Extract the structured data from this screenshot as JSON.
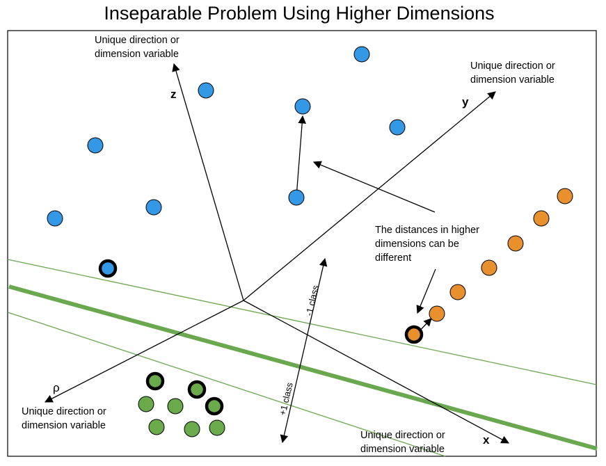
{
  "title": "Inseparable Problem Using Higher Dimensions",
  "colors": {
    "blue": "#3399e6",
    "orange": "#e8902e",
    "green": "#6aaa4a",
    "line_green": "#6aa84f",
    "ink": "#000000"
  },
  "axes": {
    "z": "z",
    "y": "y",
    "x": "x",
    "rho": "ρ"
  },
  "labels": {
    "dim_line1": "Unique direction or",
    "dim_line2": "dimension variable",
    "distances_line1": "The distances in higher",
    "distances_line2": "dimensions can be",
    "distances_line3": "different",
    "minus_class": "-1 class",
    "plus_class": "+1 class"
  }
}
